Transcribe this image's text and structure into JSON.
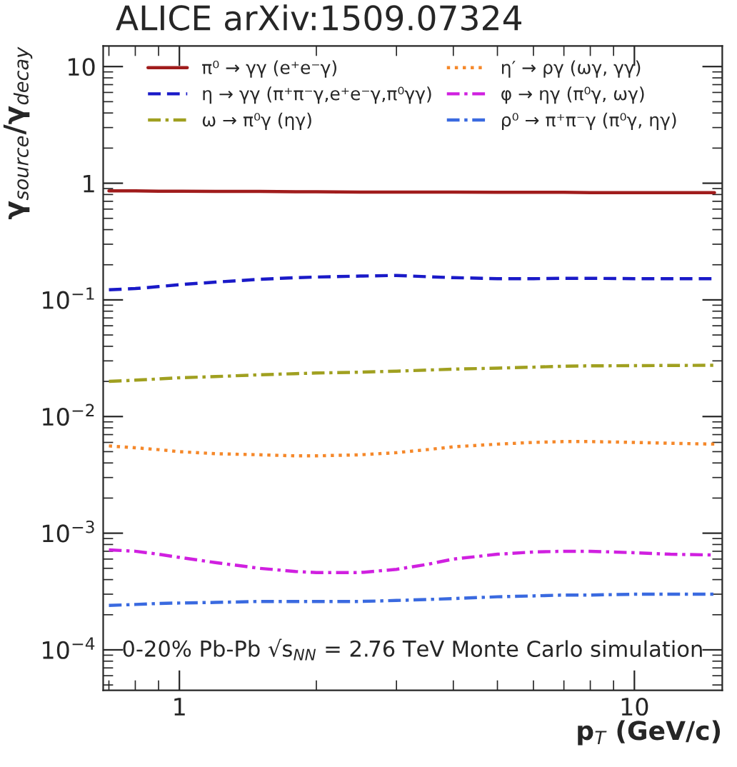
{
  "chart_data": {
    "type": "line",
    "title": "ALICE arXiv:1509.07324",
    "xlabel": "p$_{T}$ (GeV/c)",
    "ylabel": "γ$_{source}$/γ$_{decay}$",
    "log": "xy",
    "grid": false,
    "legend": "top",
    "marker": "none",
    "xlim": [
      0.68,
      15.6
    ],
    "ylim": [
      4.5e-05,
      15
    ],
    "xticks": [
      1,
      10
    ],
    "yticks": [
      {
        "value": 0.0001,
        "label": "10$^{−4}$"
      },
      {
        "value": 0.001,
        "label": "10$^{−3}$"
      },
      {
        "value": 0.01,
        "label": "10$^{−2}$"
      },
      {
        "value": 0.1,
        "label": "10$^{−1}$"
      },
      1,
      10
    ],
    "x": [
      0.7,
      0.8,
      0.9,
      1,
      1.2,
      1.5,
      1.8,
      2,
      2.5,
      3,
      3.5,
      4,
      5,
      6,
      7,
      8,
      10,
      12,
      15
    ],
    "series": [
      {
        "name": "π⁰ → γγ (e⁺e⁻γ)",
        "color": "#a01c1c",
        "line_style": "solid",
        "values": [
          0.86,
          0.86,
          0.855,
          0.855,
          0.85,
          0.85,
          0.845,
          0.845,
          0.84,
          0.84,
          0.84,
          0.84,
          0.835,
          0.835,
          0.835,
          0.83,
          0.83,
          0.83,
          0.83
        ]
      },
      {
        "name": "η → γγ (π⁺π⁻γ,e⁺e⁻γ,π⁰γγ)",
        "color": "#1a1ac8",
        "line_style": "dashed",
        "values": [
          0.122,
          0.125,
          0.13,
          0.135,
          0.142,
          0.15,
          0.155,
          0.157,
          0.16,
          0.162,
          0.158,
          0.155,
          0.152,
          0.152,
          0.153,
          0.153,
          0.152,
          0.152,
          0.152
        ]
      },
      {
        "name": "ω → π⁰γ (ηγ)",
        "color": "#a0a020",
        "line_style": "dashdot",
        "values": [
          0.02,
          0.0205,
          0.021,
          0.0215,
          0.022,
          0.0228,
          0.0233,
          0.0236,
          0.024,
          0.0245,
          0.025,
          0.0255,
          0.026,
          0.0265,
          0.027,
          0.0272,
          0.0273,
          0.0274,
          0.0275
        ]
      },
      {
        "name": "η′ → ργ (ωγ, γγ)",
        "color": "#f5882a",
        "line_style": "dotted",
        "values": [
          0.0056,
          0.0054,
          0.0052,
          0.005,
          0.0048,
          0.0047,
          0.0046,
          0.0046,
          0.0047,
          0.0049,
          0.0052,
          0.0055,
          0.0058,
          0.006,
          0.0061,
          0.0061,
          0.006,
          0.0059,
          0.0058
        ]
      },
      {
        "name": "φ → ηγ (π⁰γ, ωγ)",
        "color": "#d020e0",
        "line_style": "dashdot",
        "values": [
          0.00072,
          0.0007,
          0.00066,
          0.00062,
          0.00056,
          0.0005,
          0.00047,
          0.00046,
          0.00046,
          0.00049,
          0.00054,
          0.0006,
          0.00066,
          0.00069,
          0.0007,
          0.0007,
          0.00068,
          0.00066,
          0.00065
        ]
      },
      {
        "name": "ρ⁰ → π⁺π⁻γ (π⁰γ, ηγ)",
        "color": "#3a6ae0",
        "line_style": "dashdot",
        "values": [
          0.00024,
          0.000245,
          0.00025,
          0.000252,
          0.000255,
          0.00026,
          0.00026,
          0.00026,
          0.00026,
          0.000265,
          0.00027,
          0.000275,
          0.000285,
          0.00029,
          0.000295,
          0.000295,
          0.0003,
          0.0003,
          0.0003
        ]
      }
    ],
    "annotations": [
      "0-20% Pb-Pb √s$_{NN}$ = 2.76 TeV",
      "Monte Carlo simulation"
    ]
  }
}
